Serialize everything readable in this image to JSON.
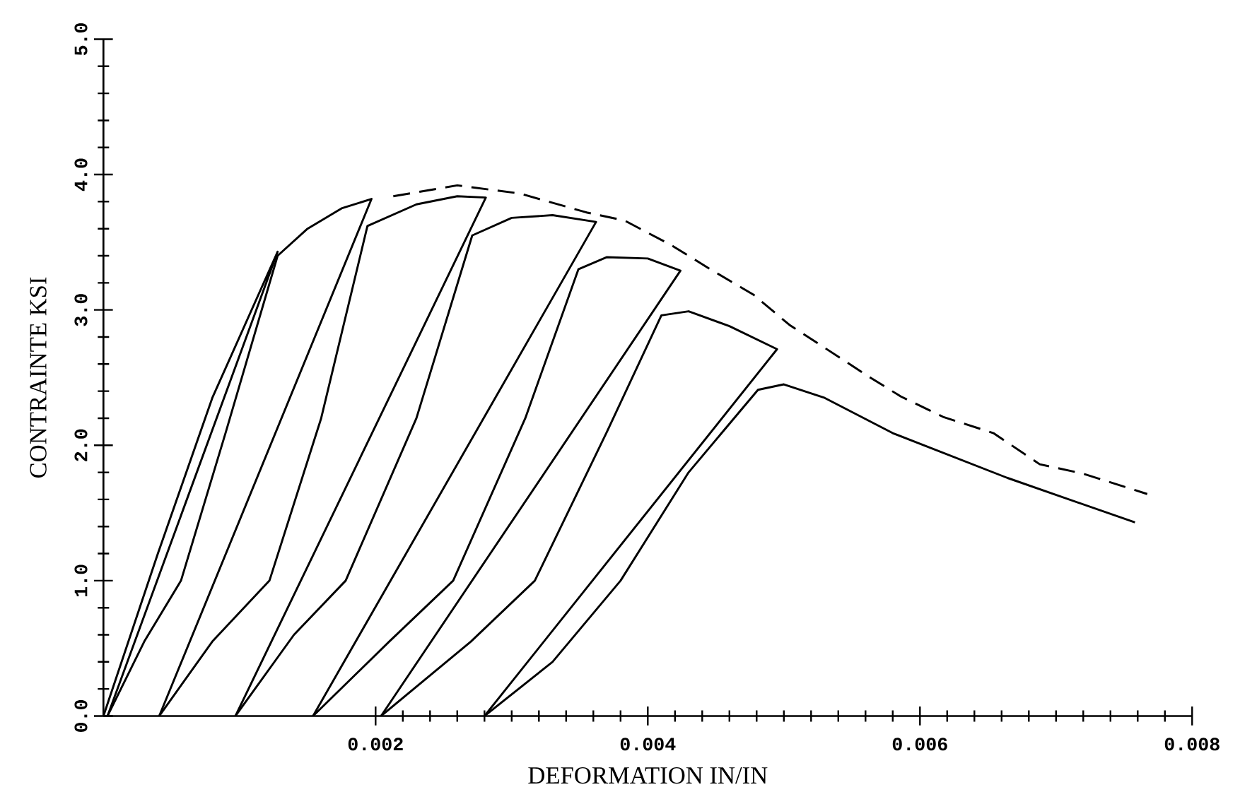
{
  "chart_data": {
    "type": "line",
    "xlabel": "DEFORMATION IN/IN",
    "ylabel": "CONTRAINTE  KSI",
    "xlim": [
      0,
      0.008
    ],
    "ylim": [
      0,
      5
    ],
    "xticks": [
      0.002,
      0.004,
      0.006,
      0.008
    ],
    "yticks": [
      {
        "value": 0,
        "label": "0.0"
      },
      {
        "value": 1,
        "label": "1.0"
      },
      {
        "value": 2,
        "label": "2.0"
      },
      {
        "value": 3,
        "label": "3.0"
      },
      {
        "value": 4,
        "label": "4.0"
      },
      {
        "value": 5,
        "label": "5.0"
      }
    ],
    "grid": false,
    "series": [
      {
        "color": "#000000",
        "line_style": "solid",
        "x": [
          0,
          0.0002,
          0.0004,
          0.0008,
          0.00128,
          3e-05
        ],
        "values": [
          0,
          0.6,
          1.2,
          2.35,
          3.43,
          0
        ]
      },
      {
        "color": "#000000",
        "line_style": "solid",
        "x": [
          3e-05,
          0.0003,
          0.00057,
          0.0009,
          0.00128,
          0.0015,
          0.00175,
          0.00197,
          0.00041
        ],
        "values": [
          0,
          0.55,
          1.0,
          2.1,
          3.4,
          3.6,
          3.75,
          3.82,
          0
        ]
      },
      {
        "color": "#000000",
        "line_style": "solid",
        "x": [
          0.00041,
          0.0008,
          0.00122,
          0.0016,
          0.00194,
          0.0023,
          0.0026,
          0.00281,
          0.00097
        ],
        "values": [
          0,
          0.55,
          1.0,
          2.2,
          3.62,
          3.78,
          3.84,
          3.83,
          0
        ]
      },
      {
        "color": "#000000",
        "line_style": "solid",
        "x": [
          0.00097,
          0.0014,
          0.00178,
          0.0023,
          0.00271,
          0.003,
          0.0033,
          0.00362,
          0.00154
        ],
        "values": [
          0,
          0.6,
          1.0,
          2.2,
          3.55,
          3.68,
          3.7,
          3.65,
          0
        ]
      },
      {
        "color": "#000000",
        "line_style": "solid",
        "x": [
          0.00154,
          0.0021,
          0.00257,
          0.0031,
          0.00349,
          0.0037,
          0.004,
          0.00424,
          0.00204
        ],
        "values": [
          0,
          0.55,
          1.0,
          2.2,
          3.3,
          3.39,
          3.38,
          3.29,
          0
        ]
      },
      {
        "color": "#000000",
        "line_style": "solid",
        "x": [
          0.00204,
          0.0027,
          0.00317,
          0.0037,
          0.0041,
          0.0043,
          0.0046,
          0.00495,
          0.0028
        ],
        "values": [
          0,
          0.55,
          1.0,
          2.1,
          2.96,
          2.99,
          2.88,
          2.71,
          0
        ]
      },
      {
        "color": "#000000",
        "line_style": "solid",
        "x": [
          0.0028,
          0.0033,
          0.0038,
          0.0043,
          0.00481,
          0.005,
          0.0053,
          0.0058,
          0.00664,
          0.00758
        ],
        "values": [
          0,
          0.4,
          1.0,
          1.8,
          2.41,
          2.45,
          2.35,
          2.09,
          1.76,
          1.43
        ]
      },
      {
        "color": "#000000",
        "line_style": "dashed",
        "x": [
          0.00213,
          0.0026,
          0.00306,
          0.00355,
          0.00383,
          0.00417,
          0.00446,
          0.00478,
          0.00504,
          0.0053,
          0.00562,
          0.00586,
          0.00617,
          0.00654,
          0.00688,
          0.0072,
          0.00767
        ],
        "values": [
          3.84,
          3.92,
          3.86,
          3.72,
          3.66,
          3.48,
          3.3,
          3.11,
          2.89,
          2.72,
          2.51,
          2.36,
          2.21,
          2.09,
          1.86,
          1.79,
          1.64
        ]
      }
    ]
  }
}
